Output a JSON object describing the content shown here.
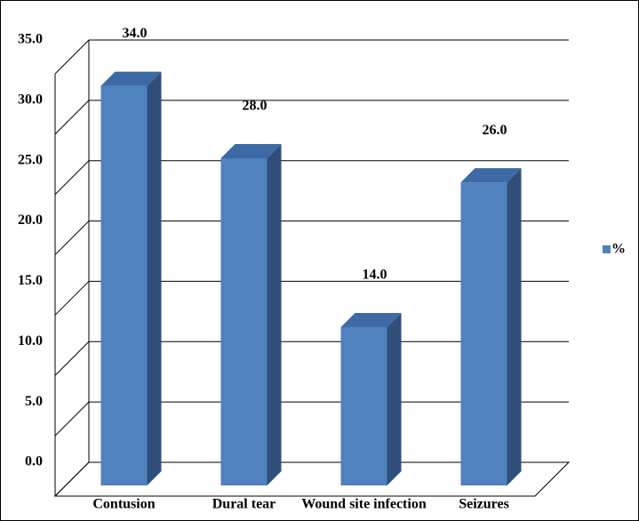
{
  "chart_data": {
    "type": "bar3d",
    "categories": [
      "Contusion",
      "Dural tear",
      "Wound site infection",
      "Seizures"
    ],
    "series": [
      {
        "name": "%",
        "color": "#4f81bd",
        "values": [
          34,
          28,
          14,
          26
        ],
        "value_labels": [
          "34.0",
          "28.0",
          "14.0",
          "26.0"
        ]
      }
    ],
    "ylim": [
      0,
      35
    ],
    "yticks": [
      {
        "value": 0,
        "label": "0.0"
      },
      {
        "value": 5,
        "label": "5.0"
      },
      {
        "value": 10,
        "label": "10.0"
      },
      {
        "value": 15,
        "label": "15.0"
      },
      {
        "value": 20,
        "label": "20.0"
      },
      {
        "value": 25,
        "label": "25.0"
      },
      {
        "value": 30,
        "label": "30.0"
      },
      {
        "value": 35,
        "label": "35.0"
      }
    ],
    "grid": true,
    "legend": "right"
  }
}
